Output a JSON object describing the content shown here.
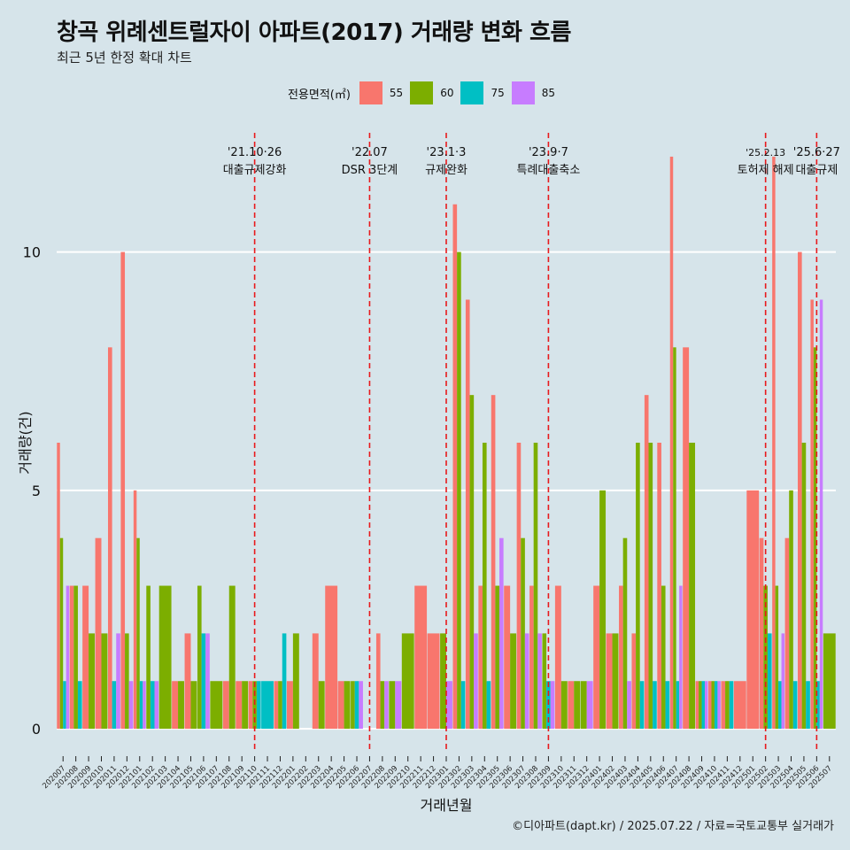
{
  "title": "창곡 위례센트럴자이 아파트(2017) 거래량 변화 흐름",
  "subtitle": "최근 5년 한정 확대 차트",
  "caption": "©디아파트(dapt.kr) / 2025.07.22 / 자료=국토교통부 실거래가",
  "legend_title": "전용면적(㎡)",
  "colors": {
    "55": "#f8766d",
    "60": "#7cae00",
    "75": "#00bfc4",
    "85": "#c77cff"
  },
  "chart_data": {
    "type": "bar",
    "title": "창곡 위례센트럴자이 아파트(2017) 거래량 변화 흐름",
    "subtitle": "최근 5년 한정 확대 차트",
    "xlabel": "거래년월",
    "ylabel": "거래량(건)",
    "ylim": [
      -0.5,
      12.5
    ],
    "yticks": [
      0,
      5,
      10
    ],
    "grid": true,
    "legend_position": "top",
    "categories": [
      "202007",
      "202008",
      "202009",
      "202010",
      "202011",
      "202012",
      "202101",
      "202102",
      "202103",
      "202104",
      "202105",
      "202106",
      "202107",
      "202108",
      "202109",
      "202110",
      "202111",
      "202112",
      "202201",
      "202202",
      "202203",
      "202204",
      "202205",
      "202206",
      "202207",
      "202208",
      "202209",
      "202210",
      "202211",
      "202212",
      "202301",
      "202302",
      "202303",
      "202304",
      "202305",
      "202306",
      "202307",
      "202308",
      "202309",
      "202310",
      "202311",
      "202312",
      "202401",
      "202402",
      "202403",
      "202404",
      "202405",
      "202406",
      "202407",
      "202408",
      "202409",
      "202410",
      "202411",
      "202412",
      "202501",
      "202502",
      "202503",
      "202504",
      "202505",
      "202506",
      "202507"
    ],
    "series": [
      {
        "name": "55",
        "values": [
          6,
          3,
          3,
          4,
          8,
          10,
          5,
          0,
          0,
          1,
          2,
          0,
          0,
          1,
          1,
          1,
          0,
          1,
          1,
          0,
          2,
          3,
          1,
          0,
          0,
          2,
          0,
          0,
          3,
          2,
          0,
          11,
          9,
          3,
          7,
          3,
          6,
          3,
          0,
          3,
          1,
          0,
          3,
          2,
          3,
          2,
          7,
          6,
          12,
          8,
          1,
          1,
          1,
          1,
          5,
          4,
          12,
          4,
          10,
          9,
          0
        ]
      },
      {
        "name": "60",
        "values": [
          4,
          3,
          2,
          2,
          0,
          2,
          4,
          3,
          3,
          1,
          1,
          3,
          1,
          3,
          1,
          1,
          0,
          1,
          2,
          0,
          1,
          0,
          1,
          1,
          0,
          1,
          1,
          2,
          0,
          0,
          2,
          10,
          7,
          6,
          3,
          2,
          4,
          6,
          2,
          1,
          1,
          1,
          5,
          2,
          4,
          6,
          6,
          3,
          8,
          6,
          1,
          1,
          1,
          0,
          0,
          3,
          3,
          5,
          6,
          8,
          2
        ]
      },
      {
        "name": "75",
        "values": [
          1,
          1,
          0,
          0,
          1,
          0,
          1,
          1,
          0,
          0,
          0,
          2,
          0,
          0,
          0,
          1,
          1,
          2,
          0,
          0,
          0,
          0,
          0,
          1,
          0,
          0,
          0,
          0,
          0,
          0,
          0,
          1,
          0,
          1,
          0,
          0,
          0,
          0,
          1,
          0,
          0,
          0,
          0,
          0,
          0,
          1,
          1,
          1,
          1,
          0,
          1,
          1,
          1,
          0,
          0,
          2,
          1,
          1,
          1,
          1,
          0
        ]
      },
      {
        "name": "85",
        "values": [
          3,
          0,
          0,
          0,
          2,
          1,
          1,
          1,
          0,
          0,
          0,
          2,
          0,
          0,
          0,
          0,
          0,
          0,
          0,
          0,
          0,
          0,
          0,
          1,
          0,
          1,
          1,
          0,
          0,
          0,
          1,
          0,
          2,
          0,
          4,
          0,
          2,
          2,
          1,
          0,
          0,
          1,
          0,
          0,
          1,
          0,
          0,
          0,
          3,
          0,
          1,
          1,
          0,
          0,
          0,
          0,
          2,
          0,
          0,
          9,
          0
        ]
      }
    ],
    "annotations": [
      {
        "date": "'21.10·26",
        "label": "대출규제강화",
        "x": "202110"
      },
      {
        "date": "'22.07",
        "label": "DSR 3단계",
        "x": "202207"
      },
      {
        "date": "'23.1·3",
        "label": "규제완화",
        "x": "202301"
      },
      {
        "date": "'23.9·7",
        "label": "특례대출축소",
        "x": "202309"
      },
      {
        "date": "'25.2.13",
        "label": "토허제 해제",
        "x": "202502"
      },
      {
        "date": "'25.6·27",
        "label": "대출규제",
        "x": "202506"
      }
    ]
  }
}
